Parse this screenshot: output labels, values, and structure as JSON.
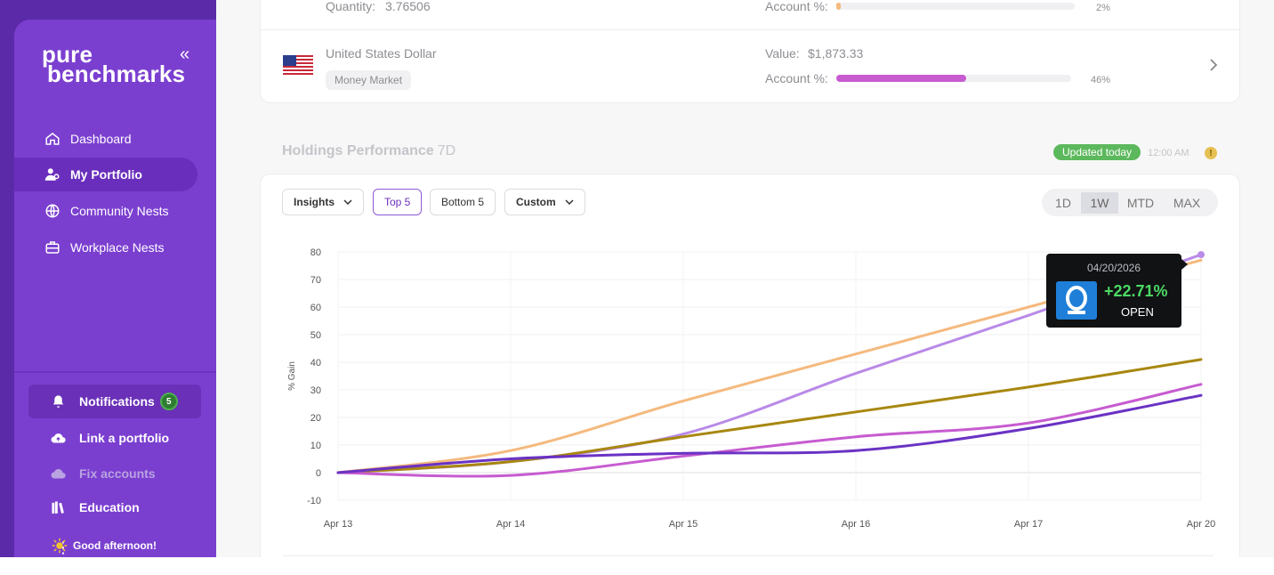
{
  "sidebar": {
    "logo_line1": "pure",
    "logo_line2": "benchmarks",
    "collapse_glyph": "«",
    "nav": [
      {
        "label": "Dashboard",
        "icon": "home-icon"
      },
      {
        "label": "My Portfolio",
        "icon": "user-icon"
      },
      {
        "label": "Community Nests",
        "icon": "globe-icon"
      },
      {
        "label": "Workplace Nests",
        "icon": "briefcase-icon"
      }
    ],
    "bottom": [
      {
        "label": "Notifications",
        "icon": "bell-icon",
        "badge": "5"
      },
      {
        "label": "Link a portfolio",
        "icon": "cloud-upload-icon"
      },
      {
        "label": "Fix accounts",
        "icon": "cloud-icon"
      },
      {
        "label": "Education",
        "icon": "books-icon"
      }
    ],
    "greeting": "Good afternoon!"
  },
  "holdings": {
    "top_row": {
      "quantity_label": "Quantity:",
      "quantity_value": "3.76506",
      "account_label": "Account %:",
      "account_pct": "2%",
      "account_fraction": 0.02,
      "bar_color": "#f5b97e"
    },
    "usd_row": {
      "name": "United States Dollar",
      "tag": "Money Market",
      "value_label": "Value:",
      "value": "$1,873.33",
      "account_label": "Account %:",
      "account_pct": "46%",
      "account_fraction": 0.46,
      "bar_color": "#c75bd0"
    }
  },
  "performance": {
    "title": "Holdings Performance",
    "period": "7D",
    "updated": "Updated today",
    "time": "12:00 AM",
    "warn": "!"
  },
  "toolbar": {
    "insights": "Insights",
    "top5": "Top 5",
    "bottom5": "Bottom 5",
    "custom": "Custom",
    "ranges": [
      "1D",
      "1W",
      "MTD",
      "MAX"
    ],
    "selected_range": "1W"
  },
  "tooltip": {
    "date": "04/20/2026",
    "gain": "+22.71%",
    "status": "OPEN"
  },
  "chart_data": {
    "type": "line",
    "ylabel": "% Gain",
    "xlabel": "",
    "categories": [
      "Apr 13",
      "Apr 14",
      "Apr 15",
      "Apr 16",
      "Apr 17",
      "Apr 20"
    ],
    "yticks": [
      80,
      70,
      60,
      50,
      40,
      30,
      20,
      10,
      0,
      -10
    ],
    "ylim": [
      -10,
      80
    ],
    "grid": true,
    "series": [
      {
        "color": "#f5b97e",
        "values": [
          0,
          8,
          26,
          43,
          60,
          77
        ]
      },
      {
        "color": "#b98ae8",
        "values": [
          0,
          4,
          14,
          36,
          57,
          79
        ]
      },
      {
        "color": "#a8870f",
        "values": [
          0,
          4,
          13,
          22,
          31,
          41
        ]
      },
      {
        "color": "#c75bd0",
        "values": [
          0,
          -1,
          6,
          13,
          18,
          32
        ]
      },
      {
        "color": "#6a32c4",
        "values": [
          0,
          5,
          7,
          8,
          16,
          28
        ]
      }
    ]
  }
}
